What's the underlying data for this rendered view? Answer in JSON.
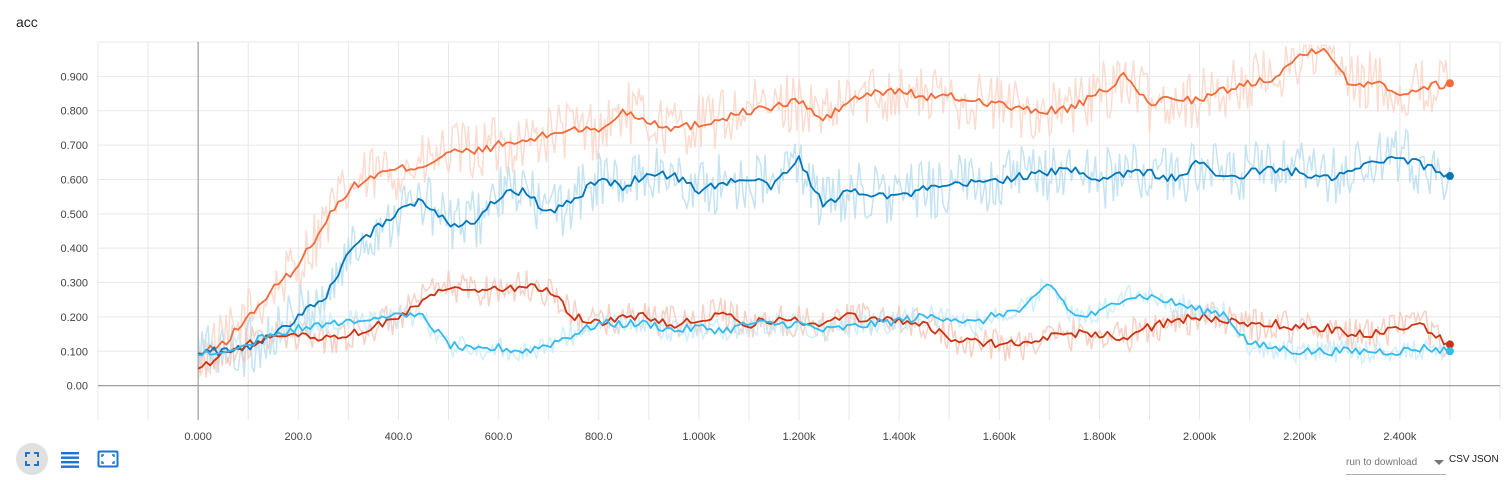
{
  "chart_data": {
    "type": "line",
    "title": "acc",
    "xlabel": "",
    "ylabel": "",
    "xlim": [
      -200,
      2600
    ],
    "ylim": [
      -0.1,
      1.0
    ],
    "x_ticks": [
      {
        "v": 0,
        "label": "0.000"
      },
      {
        "v": 200,
        "label": "200.0"
      },
      {
        "v": 400,
        "label": "400.0"
      },
      {
        "v": 600,
        "label": "600.0"
      },
      {
        "v": 800,
        "label": "800.0"
      },
      {
        "v": 1000,
        "label": "1.000k"
      },
      {
        "v": 1200,
        "label": "1.200k"
      },
      {
        "v": 1400,
        "label": "1.400k"
      },
      {
        "v": 1600,
        "label": "1.600k"
      },
      {
        "v": 1800,
        "label": "1.800k"
      },
      {
        "v": 2000,
        "label": "2.000k"
      },
      {
        "v": 2200,
        "label": "2.200k"
      },
      {
        "v": 2400,
        "label": "2.400k"
      }
    ],
    "y_ticks": [
      {
        "v": 0.0,
        "label": "0.00"
      },
      {
        "v": 0.1,
        "label": "0.100"
      },
      {
        "v": 0.2,
        "label": "0.200"
      },
      {
        "v": 0.3,
        "label": "0.300"
      },
      {
        "v": 0.4,
        "label": "0.400"
      },
      {
        "v": 0.5,
        "label": "0.500"
      },
      {
        "v": 0.6,
        "label": "0.600"
      },
      {
        "v": 0.7,
        "label": "0.700"
      },
      {
        "v": 0.8,
        "label": "0.800"
      },
      {
        "v": 0.9,
        "label": "0.900"
      }
    ],
    "grid": true,
    "series": [
      {
        "color": "#f26b38",
        "raw_color": "#fbd3c4",
        "x": [
          0,
          50,
          100,
          150,
          200,
          250,
          300,
          350,
          400,
          450,
          500,
          550,
          600,
          650,
          700,
          750,
          800,
          850,
          900,
          950,
          1000,
          1050,
          1100,
          1150,
          1200,
          1250,
          1300,
          1350,
          1400,
          1450,
          1500,
          1550,
          1600,
          1650,
          1700,
          1750,
          1800,
          1850,
          1900,
          1950,
          2000,
          2050,
          2100,
          2150,
          2200,
          2250,
          2300,
          2350,
          2400,
          2450,
          2500
        ],
        "y": [
          0.09,
          0.12,
          0.2,
          0.28,
          0.35,
          0.47,
          0.57,
          0.61,
          0.63,
          0.64,
          0.68,
          0.68,
          0.7,
          0.71,
          0.73,
          0.75,
          0.74,
          0.8,
          0.77,
          0.75,
          0.76,
          0.78,
          0.8,
          0.81,
          0.83,
          0.77,
          0.83,
          0.85,
          0.86,
          0.84,
          0.84,
          0.83,
          0.82,
          0.8,
          0.8,
          0.81,
          0.85,
          0.9,
          0.82,
          0.84,
          0.83,
          0.86,
          0.88,
          0.9,
          0.96,
          0.99,
          0.87,
          0.89,
          0.85,
          0.87,
          0.88
        ],
        "last": 0.88
      },
      {
        "color": "#0077bb",
        "raw_color": "#b6dcef",
        "x": [
          0,
          50,
          100,
          150,
          200,
          250,
          300,
          350,
          400,
          450,
          500,
          550,
          600,
          650,
          700,
          750,
          800,
          850,
          900,
          950,
          1000,
          1050,
          1100,
          1150,
          1200,
          1250,
          1300,
          1350,
          1400,
          1450,
          1500,
          1550,
          1600,
          1650,
          1700,
          1750,
          1800,
          1850,
          1900,
          1950,
          2000,
          2050,
          2100,
          2150,
          2200,
          2250,
          2300,
          2350,
          2400,
          2450,
          2500
        ],
        "y": [
          0.1,
          0.1,
          0.11,
          0.15,
          0.2,
          0.25,
          0.38,
          0.45,
          0.51,
          0.54,
          0.47,
          0.48,
          0.55,
          0.57,
          0.5,
          0.54,
          0.6,
          0.58,
          0.62,
          0.61,
          0.57,
          0.59,
          0.6,
          0.58,
          0.66,
          0.52,
          0.57,
          0.56,
          0.55,
          0.57,
          0.58,
          0.59,
          0.6,
          0.61,
          0.62,
          0.63,
          0.6,
          0.62,
          0.62,
          0.6,
          0.65,
          0.6,
          0.62,
          0.63,
          0.62,
          0.6,
          0.62,
          0.65,
          0.66,
          0.64,
          0.61
        ],
        "last": 0.61
      },
      {
        "color": "#cc3311",
        "raw_color": "#f4c6b8",
        "x": [
          0,
          50,
          100,
          150,
          200,
          250,
          300,
          350,
          400,
          450,
          500,
          550,
          600,
          650,
          700,
          750,
          800,
          850,
          900,
          950,
          1000,
          1050,
          1100,
          1150,
          1200,
          1250,
          1300,
          1350,
          1400,
          1450,
          1500,
          1550,
          1600,
          1650,
          1700,
          1750,
          1800,
          1850,
          1900,
          1950,
          2000,
          2050,
          2100,
          2150,
          2200,
          2250,
          2300,
          2350,
          2400,
          2450,
          2500
        ],
        "y": [
          0.04,
          0.1,
          0.12,
          0.14,
          0.15,
          0.14,
          0.15,
          0.17,
          0.2,
          0.25,
          0.29,
          0.28,
          0.28,
          0.29,
          0.28,
          0.2,
          0.18,
          0.2,
          0.2,
          0.18,
          0.19,
          0.21,
          0.18,
          0.19,
          0.19,
          0.18,
          0.2,
          0.19,
          0.19,
          0.18,
          0.14,
          0.13,
          0.12,
          0.12,
          0.14,
          0.15,
          0.15,
          0.14,
          0.17,
          0.19,
          0.2,
          0.19,
          0.17,
          0.18,
          0.17,
          0.17,
          0.15,
          0.15,
          0.17,
          0.17,
          0.12
        ],
        "last": 0.12
      },
      {
        "color": "#33bbee",
        "raw_color": "#c6ebfa",
        "x": [
          0,
          50,
          100,
          150,
          200,
          250,
          300,
          350,
          400,
          450,
          500,
          550,
          600,
          650,
          700,
          750,
          800,
          850,
          900,
          950,
          1000,
          1050,
          1100,
          1150,
          1200,
          1250,
          1300,
          1350,
          1400,
          1450,
          1500,
          1550,
          1600,
          1650,
          1700,
          1750,
          1800,
          1850,
          1900,
          1950,
          2000,
          2050,
          2100,
          2150,
          2200,
          2250,
          2300,
          2350,
          2400,
          2450,
          2500
        ],
        "y": [
          0.09,
          0.1,
          0.12,
          0.15,
          0.17,
          0.18,
          0.19,
          0.2,
          0.2,
          0.2,
          0.12,
          0.1,
          0.11,
          0.1,
          0.12,
          0.15,
          0.18,
          0.18,
          0.18,
          0.16,
          0.17,
          0.16,
          0.18,
          0.18,
          0.18,
          0.16,
          0.17,
          0.18,
          0.19,
          0.2,
          0.2,
          0.18,
          0.21,
          0.22,
          0.3,
          0.2,
          0.21,
          0.26,
          0.26,
          0.24,
          0.22,
          0.21,
          0.12,
          0.11,
          0.1,
          0.1,
          0.1,
          0.1,
          0.1,
          0.11,
          0.1
        ],
        "last": 0.1
      }
    ]
  },
  "toolbar": {
    "fit_icon": "expand-icon",
    "list_icon": "list-icon",
    "frame_icon": "fit-domain-icon"
  },
  "download": {
    "selector_label": "run to download",
    "csv_label": "CSV",
    "json_label": "JSON"
  }
}
